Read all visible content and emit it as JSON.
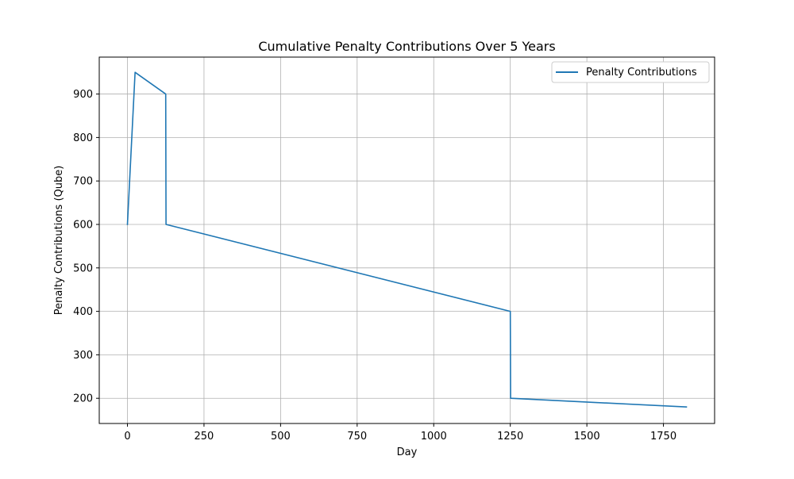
{
  "chart_data": {
    "type": "line",
    "title": "Cumulative Penalty Contributions Over 5 Years",
    "xlabel": "Day",
    "ylabel": "Penalty Contributions (Qube)",
    "xlim": [
      -92,
      1917
    ],
    "ylim": [
      142,
      985
    ],
    "xticks": [
      0,
      250,
      500,
      750,
      1000,
      1250,
      1500,
      1750
    ],
    "yticks": [
      200,
      300,
      400,
      500,
      600,
      700,
      800,
      900
    ],
    "grid": true,
    "legend_position": "top-right",
    "series": [
      {
        "name": "Penalty Contributions",
        "color": "#1f77b4",
        "x": [
          0,
          25,
          125,
          126,
          1250,
          1251,
          1825
        ],
        "y": [
          600,
          950,
          900,
          600,
          400,
          200,
          180
        ]
      }
    ]
  }
}
